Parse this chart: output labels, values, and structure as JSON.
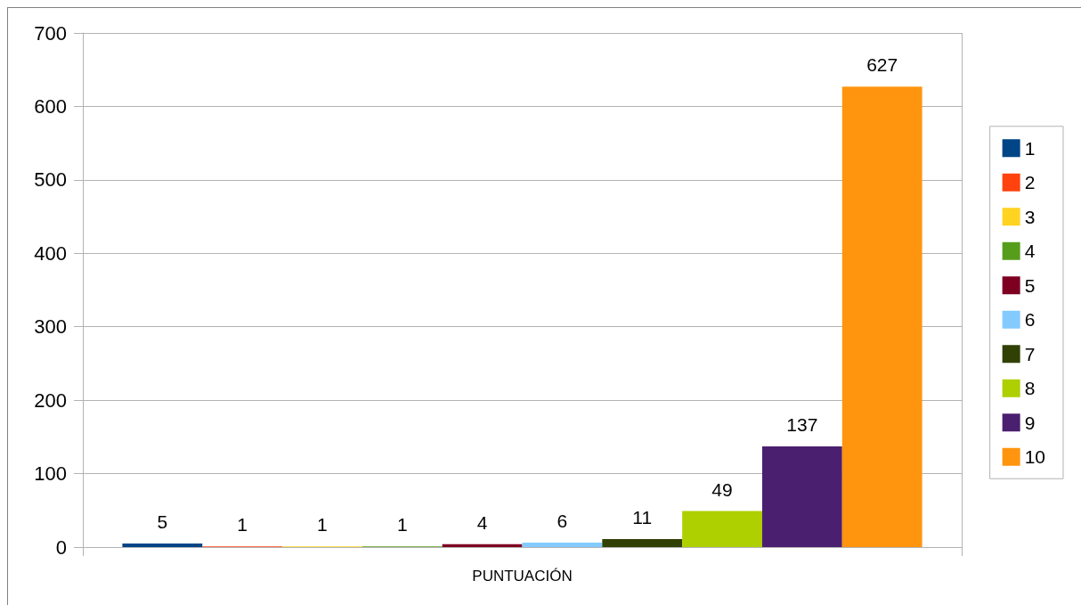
{
  "chart_data": {
    "type": "bar",
    "categories": [
      "PUNTUACIÓN"
    ],
    "series": [
      {
        "name": "1",
        "color": "#004586",
        "values": [
          5
        ]
      },
      {
        "name": "2",
        "color": "#ff420e",
        "values": [
          1
        ]
      },
      {
        "name": "3",
        "color": "#ffd320",
        "values": [
          1
        ]
      },
      {
        "name": "4",
        "color": "#579d1c",
        "values": [
          1
        ]
      },
      {
        "name": "5",
        "color": "#7e0021",
        "values": [
          4
        ]
      },
      {
        "name": "6",
        "color": "#83caff",
        "values": [
          6
        ]
      },
      {
        "name": "7",
        "color": "#314004",
        "values": [
          11
        ]
      },
      {
        "name": "8",
        "color": "#aecf00",
        "values": [
          49
        ]
      },
      {
        "name": "9",
        "color": "#4b1f6f",
        "values": [
          137
        ]
      },
      {
        "name": "10",
        "color": "#ff950e",
        "values": [
          627
        ]
      }
    ],
    "ylim": [
      0,
      700
    ],
    "yticks": [
      0,
      100,
      200,
      300,
      400,
      500,
      600,
      700
    ],
    "grid": true,
    "legend": "right",
    "data_labels": true
  }
}
